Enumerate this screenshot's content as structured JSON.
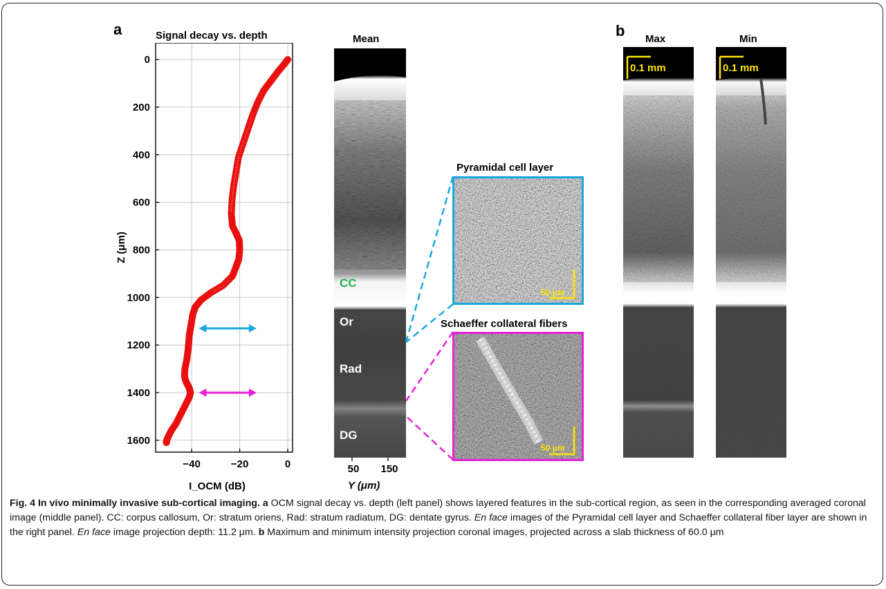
{
  "figure": {
    "panel_a": "a",
    "panel_b": "b",
    "plot_title": "Signal decay vs. depth",
    "mean_title": "Mean",
    "pyramidal_title": "Pyramidal cell layer",
    "schaeffer_title": "Schaeffer collateral fibers",
    "max_title": "Max",
    "min_title": "Min",
    "layers": [
      "CC",
      "Or",
      "Rad",
      "DG"
    ],
    "cc_color": "#22b14c",
    "scale_mm": "0.1 mm",
    "scale_um": "50 μm",
    "mean_xticks": [
      "50",
      "150"
    ],
    "mean_xlabel": "Y (μm)",
    "colors": {
      "curve": "#e8110f",
      "cyan": "#1aa7e0",
      "magenta": "#e81fd8",
      "yellow": "#ffe600"
    }
  },
  "chart_data": {
    "type": "scatter",
    "title": "Signal decay vs. depth",
    "xlabel": "I_OCM (dB)",
    "ylabel": "Z (μm)",
    "xlim": [
      -55,
      2
    ],
    "ylim": [
      1650,
      -70
    ],
    "y_inverted": true,
    "grid": true,
    "xticks": [
      -40,
      -20,
      0
    ],
    "yticks": [
      0,
      200,
      400,
      600,
      800,
      1000,
      1200,
      1400,
      1600
    ],
    "series": [
      {
        "x": [
          0,
          -1.5,
          -4,
          -7,
          -10,
          -12.5,
          -14.5,
          -16.5,
          -18.5,
          -20.5,
          -21.5,
          -22.5,
          -23.2,
          -23.5,
          -23,
          -21.5,
          -20.2,
          -20,
          -20.4,
          -21.5,
          -23,
          -27,
          -32,
          -36,
          -38.5,
          -39.5,
          -40,
          -40.5,
          -41,
          -41.2,
          -41.5,
          -42,
          -42.8,
          -43,
          -42.5,
          -41.8,
          -41,
          -40.5,
          -41,
          -42.5,
          -44.5,
          -46.5,
          -48.5,
          -50,
          -50.5,
          -50.5
        ],
        "y": [
          0,
          20,
          50,
          90,
          130,
          180,
          230,
          290,
          350,
          410,
          470,
          530,
          590,
          650,
          700,
          730,
          760,
          800,
          840,
          870,
          910,
          950,
          980,
          1010,
          1040,
          1070,
          1100,
          1130,
          1160,
          1190,
          1220,
          1260,
          1300,
          1330,
          1350,
          1365,
          1380,
          1400,
          1420,
          1450,
          1490,
          1530,
          1560,
          1590,
          1605,
          1610
        ]
      }
    ],
    "arrows": [
      {
        "y": 1130,
        "x_from": -37,
        "x_to": -13,
        "color": "cyan"
      },
      {
        "y": 1400,
        "x_from": -37,
        "x_to": -13,
        "color": "magenta"
      }
    ]
  },
  "caption": {
    "lead": "Fig. 4 In vivo minimally invasive sub-cortical imaging.",
    "a_label": "a",
    "a_text1": " OCM signal decay vs. depth (left panel) shows layered features in the sub-cortical region, as seen in the corresponding averaged coronal image (middle panel). CC: corpus callosum, Or: stratum oriens, Rad: stratum radiatum, DG: dentate gyrus. ",
    "en_face": "En face",
    "a_text2": " images of the Pyramidal cell layer and Schaeffer collateral fiber layer are shown in the right panel. ",
    "en_face2": "En face",
    "a_text3": " image projection depth: 11.2 μm. ",
    "b_label": "b",
    "b_text": " Maximum and minimum intensity projection coronal images, projected across a slab thickness of 60.0 μm"
  }
}
